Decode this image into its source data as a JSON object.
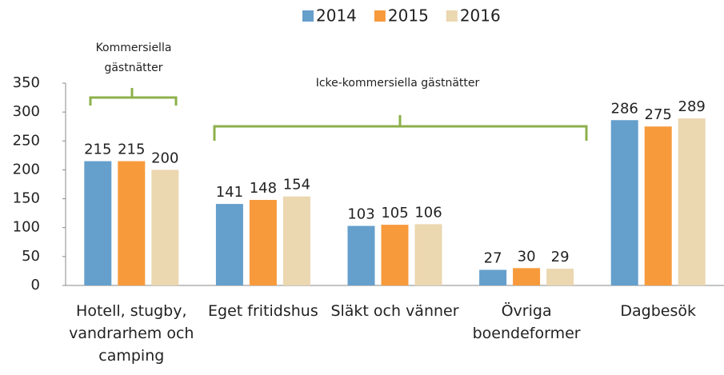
{
  "chart_data": {
    "type": "bar",
    "categories": [
      "Hotell, stugby, vandrarhem och camping",
      "Eget fritidshus",
      "Släkt och vänner",
      "Övriga boendeformer",
      "Dagbesök"
    ],
    "series": [
      {
        "name": "2014",
        "color": "#659fcc",
        "values": [
          215,
          141,
          103,
          27,
          286
        ]
      },
      {
        "name": "2015",
        "color": "#f79a3c",
        "values": [
          215,
          148,
          105,
          30,
          275
        ]
      },
      {
        "name": "2016",
        "color": "#ebd7b0",
        "values": [
          200,
          154,
          106,
          29,
          289
        ]
      }
    ],
    "ylim": [
      0,
      350
    ],
    "yticks": [
      0,
      50,
      100,
      150,
      200,
      250,
      300,
      350
    ],
    "legend": "top",
    "annotations": [
      "Kommersiella gästnätter",
      "Icke-kommersiella gästnätter"
    ]
  }
}
